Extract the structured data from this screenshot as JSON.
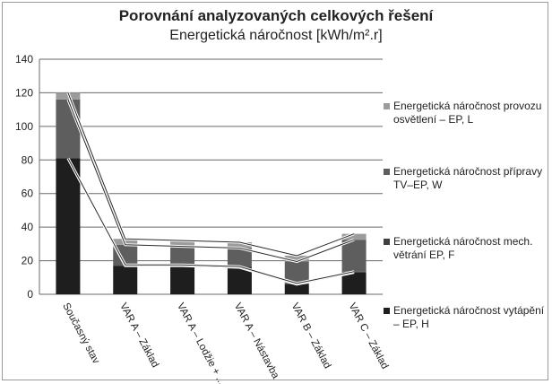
{
  "chart_data": {
    "type": "bar",
    "stacked": true,
    "title": "Porovnání analyzovaných celkových řešení",
    "subtitle": "Energetická náročnost [kWh/m².r]",
    "xlabel": "",
    "ylabel": "",
    "ylim": [
      0,
      140
    ],
    "yticks": [
      "0",
      "20",
      "40",
      "60",
      "80",
      "100",
      "120",
      "140"
    ],
    "grid": true,
    "legend_position": "right",
    "categories": [
      "Současný stav",
      "VAR A – Základ",
      "VAR A – Lodžie + ...",
      "VAR A – Nástavba",
      "VAR B – Základ",
      "VAR C – Základ"
    ],
    "series": [
      {
        "name": "Energetická náročnost vytápění – EP, H",
        "color": "#1e1e1e",
        "values": [
          81,
          17,
          17,
          16,
          6,
          13
        ]
      },
      {
        "name": "Energetická náročnost mech. větrání EP, F",
        "color": "#3f3f3f",
        "values": [
          0,
          0.5,
          0.5,
          0.5,
          0.5,
          0.5
        ]
      },
      {
        "name": "Energetická náročnost přípravy TV–EP, W",
        "color": "#5e5e5e",
        "values": [
          35,
          12,
          11,
          11,
          13,
          19
        ]
      },
      {
        "name": "Energetická náročnost provozu osvětlení – EP, L",
        "color": "#9c9c9c",
        "values": [
          4,
          3.5,
          3.5,
          3.5,
          3.5,
          3.5
        ]
      }
    ]
  },
  "legend_order": [
    3,
    2,
    1,
    0
  ]
}
